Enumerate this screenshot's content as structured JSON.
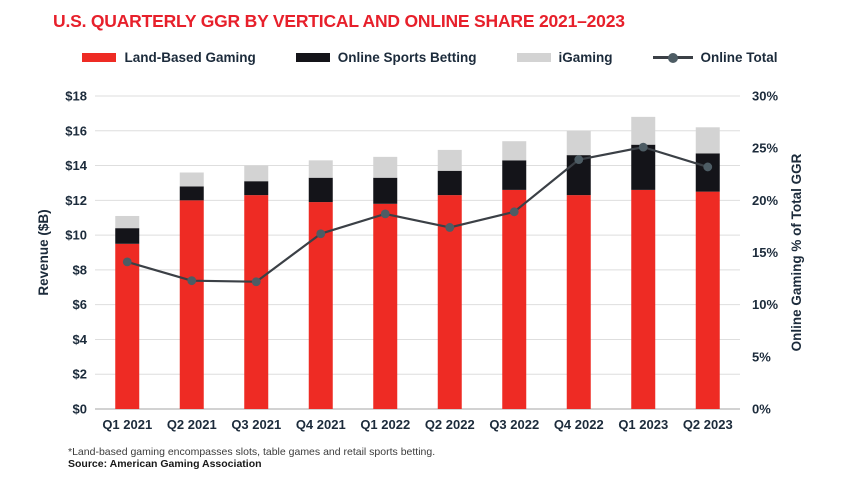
{
  "title": "U.S. QUARTERLY GGR BY VERTICAL AND ONLINE SHARE 2021–2023",
  "footnote": "*Land-based gaming encompasses slots, table games and retail sports betting.",
  "source": "Source: American Gaming Association",
  "colors": {
    "title": "#e7202b",
    "land_based": "#ee2b24",
    "online_sports_betting": "#141419",
    "igaming": "#d3d3d3",
    "line": "#3b4046",
    "dot": "#4d5c64",
    "axis_text": "#1c2b3b",
    "gridline": "#dedede",
    "baseline": "#c3c3c3"
  },
  "legend": [
    {
      "label": "Land-Based Gaming",
      "glyph": "swatch",
      "color": "#ee2b24"
    },
    {
      "label": "Online Sports Betting",
      "glyph": "swatch",
      "color": "#141419"
    },
    {
      "label": "iGaming",
      "glyph": "swatch",
      "color": "#d3d3d3"
    },
    {
      "label": "Online Total",
      "glyph": "line-dot",
      "color": "#3b4046",
      "dot_color": "#4d5c64"
    }
  ],
  "chart_data": {
    "type": "combo-stacked-bar-line",
    "title": "U.S. QUARTERLY GGR BY VERTICAL AND ONLINE SHARE 2021–2023",
    "grid": true,
    "legend_position": "top",
    "categories": [
      "Q1 2021",
      "Q2 2021",
      "Q3 2021",
      "Q4 2021",
      "Q1 2022",
      "Q2 2022",
      "Q3 2022",
      "Q4 2022",
      "Q1 2023",
      "Q2 2023"
    ],
    "series": [
      {
        "name": "Land-Based Gaming",
        "type": "bar",
        "stack": true,
        "axis": "left",
        "color": "#ee2b24",
        "values": [
          9.5,
          12.0,
          12.3,
          11.9,
          11.8,
          12.3,
          12.6,
          12.3,
          12.6,
          12.5
        ]
      },
      {
        "name": "Online Sports Betting",
        "type": "bar",
        "stack": true,
        "axis": "left",
        "color": "#141419",
        "values": [
          0.9,
          0.8,
          0.8,
          1.4,
          1.5,
          1.4,
          1.7,
          2.3,
          2.6,
          2.2
        ]
      },
      {
        "name": "iGaming",
        "type": "bar",
        "stack": true,
        "axis": "left",
        "color": "#d3d3d3",
        "values": [
          0.7,
          0.8,
          0.9,
          1.0,
          1.2,
          1.2,
          1.1,
          1.4,
          1.6,
          1.5
        ]
      },
      {
        "name": "Online Total",
        "type": "line",
        "axis": "right",
        "color": "#3b4046",
        "values": [
          14.1,
          12.3,
          12.2,
          16.8,
          18.7,
          17.4,
          18.9,
          23.9,
          25.1,
          23.2
        ]
      }
    ],
    "stacked_totals": [
      11.1,
      13.6,
      14.0,
      14.3,
      14.5,
      14.9,
      15.4,
      16.0,
      16.8,
      16.2
    ],
    "left_axis": {
      "label": "Revenue ($B)",
      "min": 0,
      "max": 18,
      "step": 2,
      "tick_prefix": "$"
    },
    "right_axis": {
      "label": "Online Gaming % of Total GGR",
      "min": 0,
      "max": 30,
      "step": 5,
      "tick_suffix": "%"
    }
  }
}
